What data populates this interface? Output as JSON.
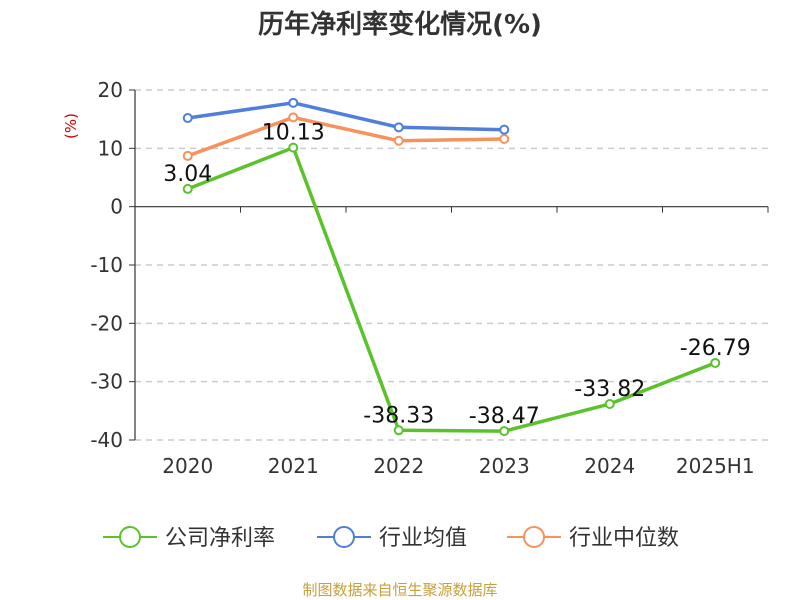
{
  "chart_data": {
    "type": "line",
    "title": "历年净利率变化情况(%)",
    "ylabel": "(%)",
    "categories": [
      "2020",
      "2021",
      "2022",
      "2023",
      "2024",
      "2025H1"
    ],
    "ylim": [
      -40,
      20
    ],
    "yticks": [
      20,
      10,
      0,
      -10,
      -20,
      -30,
      -40
    ],
    "grid": true,
    "legend_position": "bottom",
    "series": [
      {
        "name": "公司净利率",
        "color": "#5cc22c",
        "values": [
          3.04,
          10.13,
          -38.33,
          -38.47,
          -33.82,
          -26.79
        ],
        "labels": [
          "3.04",
          "10.13",
          "-38.33",
          "-38.47",
          "-33.82",
          "-26.79"
        ]
      },
      {
        "name": "行业均值",
        "color": "#4f7fdb",
        "values": [
          15.2,
          17.8,
          13.6,
          13.2,
          null,
          null
        ]
      },
      {
        "name": "行业中位数",
        "color": "#f5925d",
        "values": [
          8.7,
          15.3,
          11.3,
          11.6,
          null,
          null
        ]
      }
    ]
  },
  "footer": {
    "source": "制图数据来自恒生聚源数据库"
  }
}
